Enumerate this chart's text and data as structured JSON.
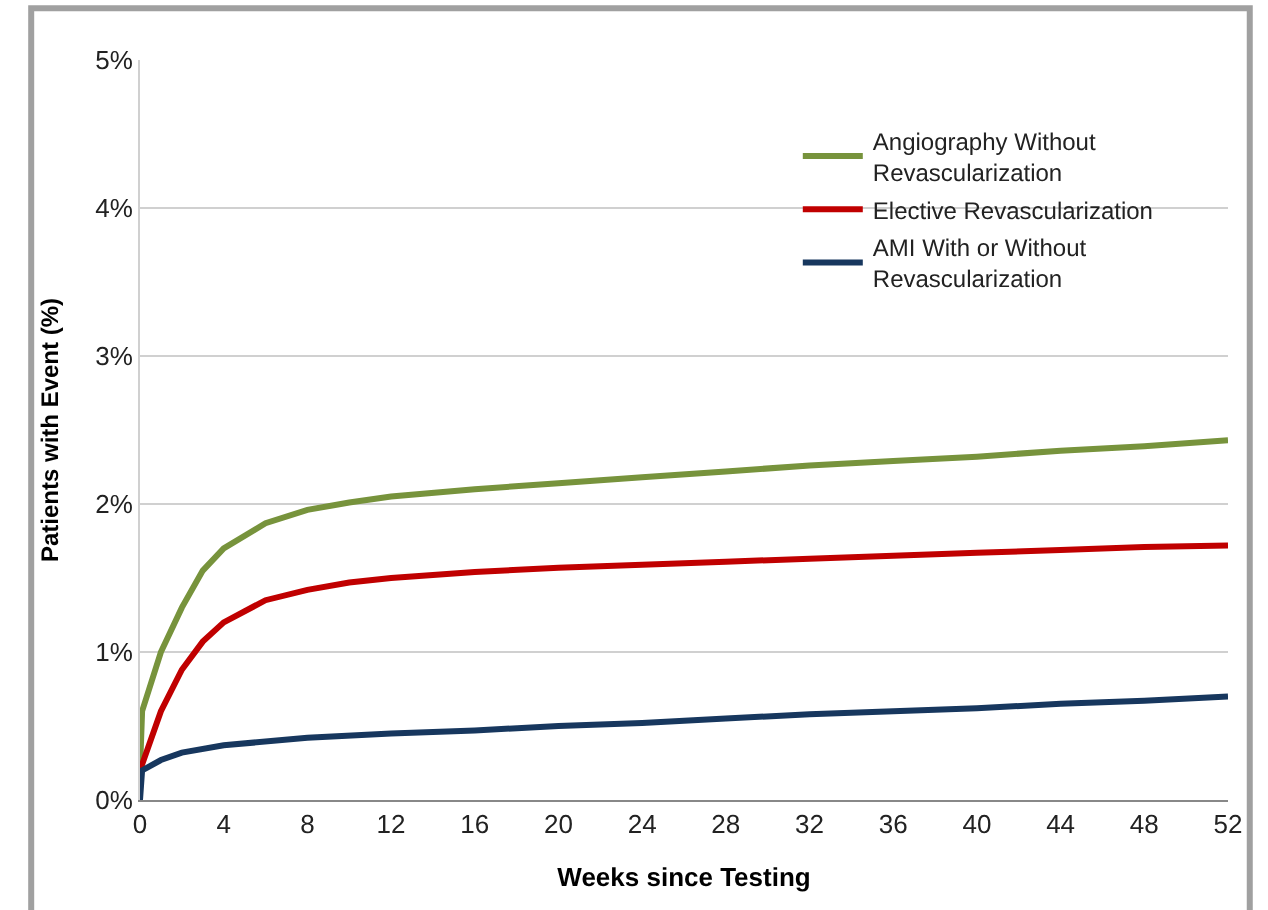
{
  "chart_data": {
    "type": "line",
    "xlabel": "Weeks since Testing",
    "ylabel": "Patients with Event (%)",
    "xlim": [
      0,
      52
    ],
    "xticks": [
      0,
      4,
      8,
      12,
      16,
      20,
      24,
      28,
      32,
      36,
      40,
      44,
      48,
      52
    ],
    "ylim": [
      0,
      5
    ],
    "yticks": [
      {
        "value": 0,
        "label": "0%"
      },
      {
        "value": 1,
        "label": "1%"
      },
      {
        "value": 2,
        "label": "2%"
      },
      {
        "value": 3,
        "label": "3%"
      },
      {
        "value": 4,
        "label": "4%"
      },
      {
        "value": 5,
        "label": "5%"
      }
    ],
    "grid": "y",
    "legend": "top right",
    "marker": "none",
    "line_style": "solid",
    "series": [
      {
        "name": "Angiography Without Revascularization",
        "color": "#77933c",
        "x": [
          0,
          0.1,
          1,
          2,
          3,
          4,
          6,
          8,
          10,
          12,
          16,
          20,
          24,
          28,
          32,
          36,
          40,
          44,
          48,
          52
        ],
        "values": [
          0.2,
          0.6,
          1.0,
          1.3,
          1.55,
          1.7,
          1.87,
          1.96,
          2.01,
          2.05,
          2.1,
          2.14,
          2.18,
          2.22,
          2.26,
          2.29,
          2.32,
          2.36,
          2.39,
          2.43
        ]
      },
      {
        "name": "Elective Revascularization",
        "color": "#c00000",
        "x": [
          0,
          1,
          2,
          3,
          4,
          6,
          8,
          10,
          12,
          16,
          20,
          24,
          28,
          32,
          36,
          40,
          44,
          48,
          52
        ],
        "values": [
          0.2,
          0.6,
          0.88,
          1.07,
          1.2,
          1.35,
          1.42,
          1.47,
          1.5,
          1.54,
          1.57,
          1.59,
          1.61,
          1.63,
          1.65,
          1.67,
          1.69,
          1.71,
          1.72
        ]
      },
      {
        "name": "AMI With or Without Revascularization",
        "color": "#17375e",
        "x": [
          0,
          0.1,
          1,
          2,
          4,
          8,
          12,
          16,
          20,
          24,
          28,
          32,
          36,
          40,
          44,
          48,
          52
        ],
        "values": [
          0,
          0.2,
          0.27,
          0.32,
          0.37,
          0.42,
          0.45,
          0.47,
          0.5,
          0.52,
          0.55,
          0.58,
          0.6,
          0.62,
          0.65,
          0.67,
          0.7
        ]
      }
    ]
  }
}
